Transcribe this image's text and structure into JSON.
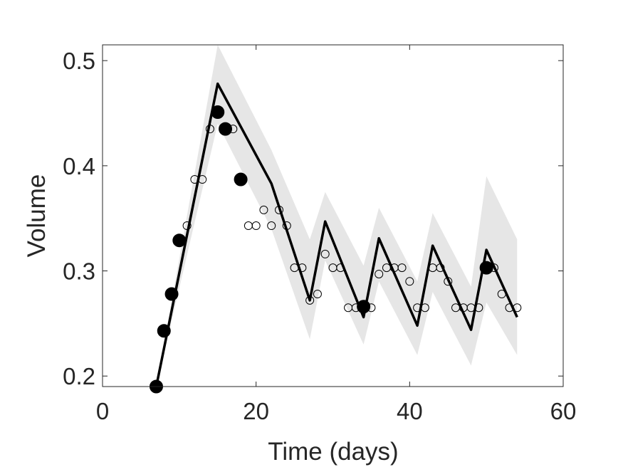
{
  "chart_data": {
    "type": "line",
    "xlabel": "Time (days)",
    "ylabel": "Volume",
    "xlim": [
      0,
      60
    ],
    "ylim": [
      0.19,
      0.515
    ],
    "x_ticks": [
      0,
      20,
      40,
      60
    ],
    "y_ticks": [
      0.2,
      0.3,
      0.4,
      0.5
    ],
    "x_tick_labels": [
      "0",
      "20",
      "40",
      "60"
    ],
    "y_tick_labels": [
      "0.2",
      "0.3",
      "0.4",
      "0.5"
    ],
    "grid": false,
    "colors": {
      "model": "#000000",
      "band": "#e6e6e6",
      "frame": "#262626"
    },
    "series": [
      {
        "type": "band",
        "x": [
          7,
          15,
          22,
          27,
          29,
          34,
          36,
          41,
          43,
          48,
          50,
          54
        ],
        "lower": [
          0.19,
          0.44,
          0.34,
          0.235,
          0.31,
          0.23,
          0.29,
          0.22,
          0.28,
          0.21,
          0.27,
          0.22
        ],
        "upper": [
          0.19,
          0.515,
          0.415,
          0.33,
          0.375,
          0.305,
          0.36,
          0.29,
          0.355,
          0.285,
          0.39,
          0.33
        ]
      },
      {
        "type": "line",
        "x": [
          7,
          15,
          22,
          27,
          29,
          34,
          36,
          41,
          43,
          48,
          50,
          54
        ],
        "y": [
          0.19,
          0.478,
          0.383,
          0.272,
          0.347,
          0.256,
          0.331,
          0.248,
          0.324,
          0.244,
          0.32,
          0.256
        ]
      },
      {
        "type": "scatter",
        "marker": "open-circle",
        "x": [
          11,
          12,
          13,
          14,
          17,
          19,
          20,
          21,
          22,
          23,
          24,
          25,
          26,
          27,
          28,
          29,
          30,
          31,
          32,
          33,
          35,
          36,
          37,
          38,
          39,
          40,
          41,
          42,
          43,
          44,
          45,
          46,
          47,
          48,
          49,
          51,
          52,
          53,
          54
        ],
        "y": [
          0.343,
          0.387,
          0.387,
          0.435,
          0.435,
          0.343,
          0.343,
          0.358,
          0.343,
          0.358,
          0.343,
          0.303,
          0.303,
          0.272,
          0.278,
          0.316,
          0.303,
          0.303,
          0.265,
          0.265,
          0.265,
          0.297,
          0.303,
          0.303,
          0.303,
          0.29,
          0.265,
          0.265,
          0.303,
          0.303,
          0.29,
          0.265,
          0.265,
          0.265,
          0.265,
          0.303,
          0.278,
          0.265,
          0.265
        ]
      },
      {
        "type": "scatter",
        "marker": "filled-circle",
        "x": [
          7,
          8,
          9,
          10,
          15,
          16,
          18,
          34,
          50
        ],
        "y": [
          0.19,
          0.243,
          0.278,
          0.329,
          0.451,
          0.435,
          0.387,
          0.266,
          0.303
        ]
      }
    ]
  }
}
